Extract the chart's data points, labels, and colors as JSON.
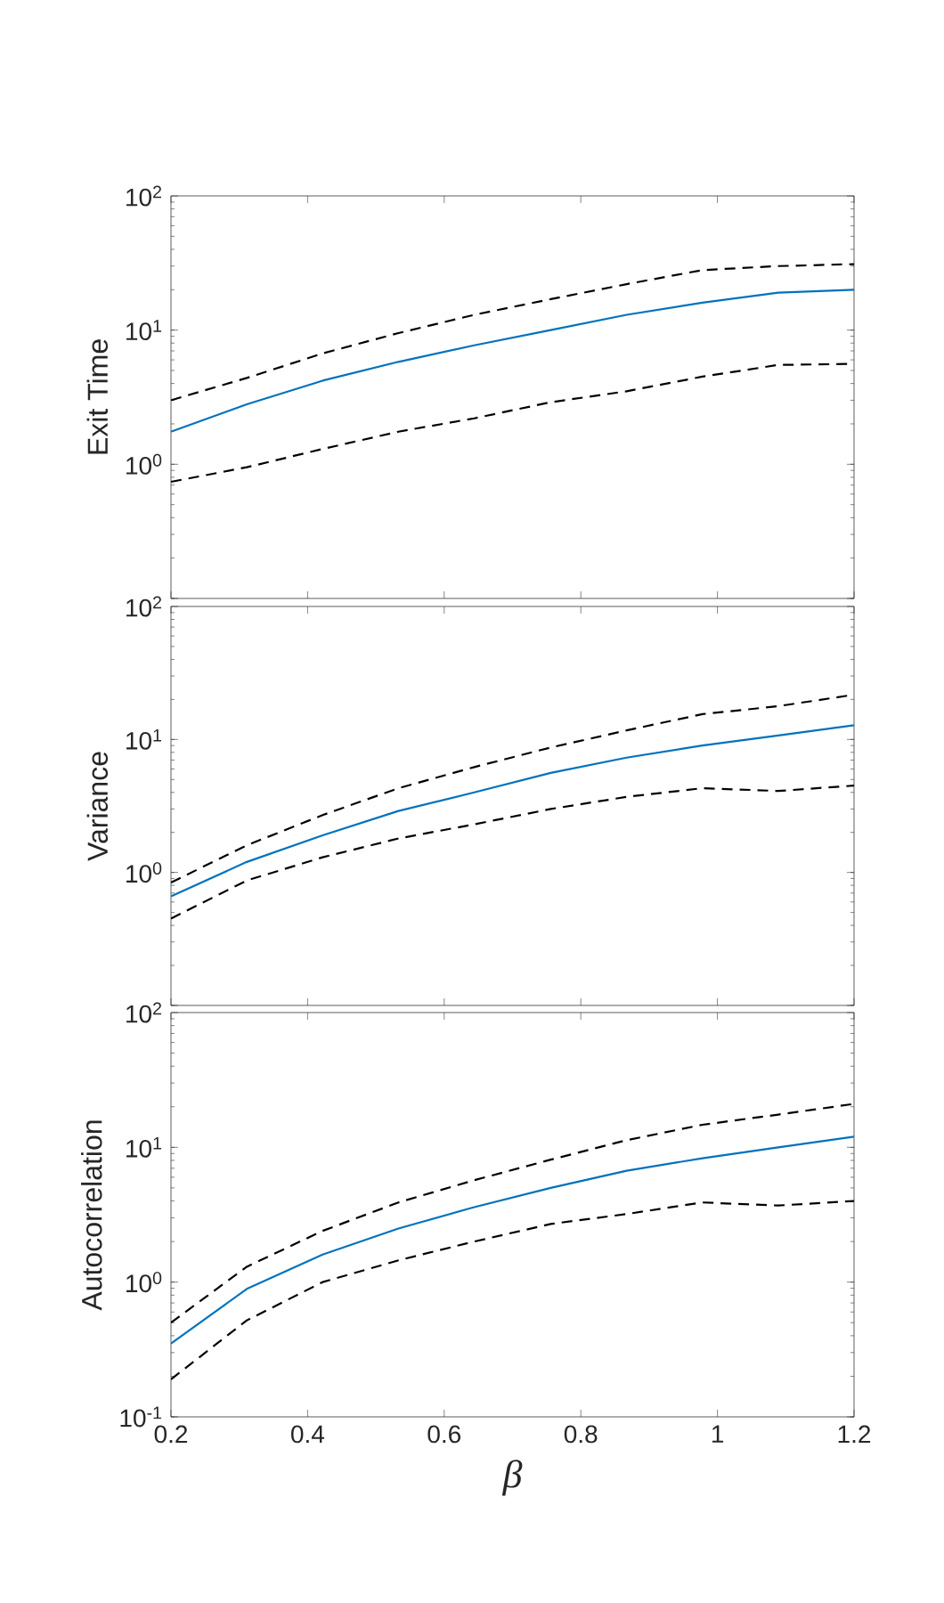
{
  "chart_data": [
    {
      "type": "line",
      "ylabel": "Exit Time",
      "log": "y",
      "xlim": [
        0.2,
        1.2
      ],
      "xticks": [
        0.2,
        0.4,
        0.6,
        0.8,
        1,
        1.2
      ],
      "ylim": [
        0.1,
        100
      ],
      "yticks": [
        {
          "value": 0.1,
          "label": null
        },
        {
          "value": 1,
          "label": "10$^{0}$"
        },
        {
          "value": 10,
          "label": "10$^{1}$"
        },
        {
          "value": 100,
          "label": "10$^{2}$"
        }
      ],
      "tick_labels": "y",
      "x": [
        0.2,
        0.311,
        0.422,
        0.533,
        0.644,
        0.756,
        0.867,
        0.978,
        1.089,
        1.2
      ],
      "series": [
        {
          "color": "#000000",
          "line_style": "dashed",
          "values": [
            3.0,
            4.4,
            6.7,
            9.5,
            13,
            17,
            22,
            28,
            30,
            31
          ]
        },
        {
          "color": "#000000",
          "line_style": "dashed",
          "values": [
            0.74,
            0.95,
            1.3,
            1.75,
            2.2,
            2.9,
            3.5,
            4.5,
            5.5,
            5.6
          ]
        },
        {
          "color": "#0072bd",
          "line_style": "solid",
          "values": [
            1.75,
            2.8,
            4.2,
            5.8,
            7.7,
            10,
            13,
            16,
            19,
            20
          ]
        }
      ]
    },
    {
      "type": "line",
      "ylabel": "Variance",
      "log": "y",
      "xlim": [
        0.2,
        1.2
      ],
      "xticks": [
        0.2,
        0.4,
        0.6,
        0.8,
        1,
        1.2
      ],
      "ylim": [
        0.1,
        100
      ],
      "yticks": [
        {
          "value": 0.1,
          "label": null
        },
        {
          "value": 1,
          "label": "10$^{0}$"
        },
        {
          "value": 10,
          "label": "10$^{1}$"
        },
        {
          "value": 100,
          "label": "10$^{2}$"
        }
      ],
      "tick_labels": "y",
      "x": [
        0.2,
        0.311,
        0.422,
        0.533,
        0.644,
        0.756,
        0.867,
        0.978,
        1.089,
        1.2
      ],
      "series": [
        {
          "color": "#000000",
          "line_style": "dashed",
          "values": [
            0.84,
            1.6,
            2.7,
            4.3,
            6.2,
            8.7,
            11.7,
            15.5,
            17.8,
            21.7
          ]
        },
        {
          "color": "#000000",
          "line_style": "dashed",
          "values": [
            0.45,
            0.87,
            1.3,
            1.8,
            2.3,
            3.0,
            3.7,
            4.3,
            4.1,
            4.5
          ]
        },
        {
          "color": "#0072bd",
          "line_style": "solid",
          "values": [
            0.66,
            1.2,
            1.9,
            2.9,
            4.0,
            5.6,
            7.3,
            9.0,
            10.7,
            12.8
          ]
        }
      ]
    },
    {
      "type": "line",
      "ylabel": "Autocorrelation",
      "xlabel": "β",
      "log": "y",
      "xlim": [
        0.2,
        1.2
      ],
      "xticks": [
        0.2,
        0.4,
        0.6,
        0.8,
        1,
        1.2
      ],
      "ylim": [
        0.1,
        100
      ],
      "yticks": [
        {
          "value": 0.1,
          "label": "10$^{-1}$"
        },
        {
          "value": 1,
          "label": "10$^{0}$"
        },
        {
          "value": 10,
          "label": "10$^{1}$"
        },
        {
          "value": 100,
          "label": "10$^{2}$"
        }
      ],
      "x": [
        0.2,
        0.311,
        0.422,
        0.533,
        0.644,
        0.756,
        0.867,
        0.978,
        1.089,
        1.2
      ],
      "series": [
        {
          "color": "#000000",
          "line_style": "dashed",
          "values": [
            0.5,
            1.3,
            2.4,
            3.9,
            5.7,
            8.1,
            11.3,
            14.7,
            17.5,
            21
          ]
        },
        {
          "color": "#000000",
          "line_style": "dashed",
          "values": [
            0.19,
            0.52,
            1.0,
            1.45,
            2.0,
            2.7,
            3.2,
            3.9,
            3.7,
            4.0
          ]
        },
        {
          "color": "#0072bd",
          "line_style": "solid",
          "values": [
            0.35,
            0.89,
            1.6,
            2.5,
            3.6,
            5.0,
            6.7,
            8.3,
            10,
            12
          ]
        }
      ]
    }
  ]
}
